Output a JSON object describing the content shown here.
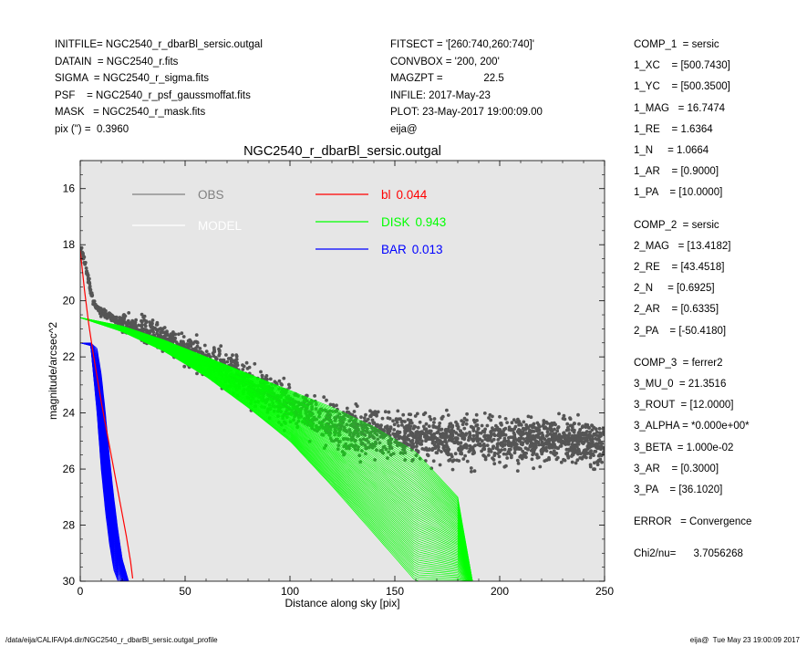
{
  "header": {
    "left": [
      "INITFILE= NGC2540_r_dbarBl_sersic.outgal",
      "DATAIN  = NGC2540_r.fits",
      "SIGMA  = NGC2540_r_sigma.fits",
      "PSF    = NGC2540_r_psf_gaussmoffat.fits",
      "MASK   = NGC2540_r_mask.fits",
      "pix (\") =  0.3960"
    ],
    "middle": [
      "FITSECT = '[260:740,260:740]'",
      "CONVBOX = '200, 200'",
      "MAGZPT =              22.5",
      "INFILE: 2017-May-23",
      "PLOT: 23-May-2017 19:00:09.00",
      "eija@"
    ]
  },
  "params": [
    {
      "text": "COMP_1  = sersic",
      "group": 0
    },
    {
      "text": "1_XC    = [500.7430]",
      "group": 0
    },
    {
      "text": "1_YC    = [500.3500]",
      "group": 0
    },
    {
      "text": "1_MAG   = 16.7474",
      "group": 0
    },
    {
      "text": "1_RE    = 1.6364",
      "group": 0
    },
    {
      "text": "1_N     = 1.0664",
      "group": 0
    },
    {
      "text": "1_AR    = [0.9000]",
      "group": 0
    },
    {
      "text": "1_PA    = [10.0000]",
      "group": 0
    },
    {
      "text": "COMP_2  = sersic",
      "group": 1
    },
    {
      "text": "2_MAG   = [13.4182]",
      "group": 1
    },
    {
      "text": "2_RE    = [43.4518]",
      "group": 1
    },
    {
      "text": "2_N     = [0.6925]",
      "group": 1
    },
    {
      "text": "2_AR    = [0.6335]",
      "group": 1
    },
    {
      "text": "2_PA    = [-50.4180]",
      "group": 1
    },
    {
      "text": "COMP_3  = ferrer2",
      "group": 2
    },
    {
      "text": "3_MU_0  = 21.3516",
      "group": 2
    },
    {
      "text": "3_ROUT  = [12.0000]",
      "group": 2
    },
    {
      "text": "3_ALPHA = *0.000e+00*",
      "group": 2
    },
    {
      "text": "3_BETA  = 1.000e-02",
      "group": 2
    },
    {
      "text": "3_AR    = [0.3000]",
      "group": 2
    },
    {
      "text": "3_PA    = [36.1020]",
      "group": 2
    },
    {
      "text": "ERROR   = Convergence",
      "group": 3
    },
    {
      "text": "Chi2/nu=      3.7056268",
      "group": 4
    }
  ],
  "footer": {
    "left": "/data/eija/CALIFA/p4.dir/NGC2540_r_dbarBl_sersic.outgal_profile",
    "right": "eija@  Tue May 23 19:00:09 2017"
  },
  "colors": {
    "plot_bg": "#e6e6e6",
    "obs": "#555555",
    "model": "#ffffff",
    "bl": "#ff0000",
    "disk": "#00ff00",
    "bar": "#0000ff"
  },
  "chart_data": {
    "type": "scatter",
    "title": "NGC2540_r_dbarBl_sersic.outgal",
    "xlabel": "Distance along sky [pix]",
    "ylabel": "magnitude/arcsec^2",
    "xlim": [
      0,
      250
    ],
    "ylim": [
      30,
      15
    ],
    "y_inverted": true,
    "xticks": [
      0,
      50,
      100,
      150,
      200,
      250
    ],
    "yticks": [
      16,
      18,
      20,
      22,
      24,
      26,
      28,
      30
    ],
    "grid": false,
    "legend_placement": "top",
    "legend": [
      {
        "label": "OBS",
        "value": "",
        "color": "#808080"
      },
      {
        "label": "MODEL",
        "value": "",
        "color": "#ffffff"
      },
      {
        "label": "bl",
        "value": "0.044",
        "color": "#ff0000"
      },
      {
        "label": "DISK",
        "value": "0.943",
        "color": "#00ff00"
      },
      {
        "label": "BAR",
        "value": "0.013",
        "color": "#0000ff"
      }
    ],
    "series": [
      {
        "name": "OBS",
        "style": "points",
        "x": [
          0.5,
          3,
          6,
          10,
          15,
          20,
          30,
          40,
          50,
          60,
          70,
          80,
          90,
          100,
          110,
          120,
          130,
          140,
          150,
          160,
          170,
          180,
          190,
          200,
          210,
          220,
          230,
          240,
          250
        ],
        "y": [
          18.2,
          18.9,
          20.0,
          20.4,
          20.6,
          20.8,
          21.0,
          21.3,
          21.7,
          22.1,
          22.5,
          22.9,
          23.4,
          23.8,
          24.1,
          24.4,
          24.6,
          24.7,
          24.8,
          24.9,
          24.9,
          24.9,
          25.0,
          25.0,
          25.0,
          25.0,
          25.0,
          25.1,
          25.1
        ]
      },
      {
        "name": "MODEL",
        "style": "line",
        "x": [
          0,
          5,
          10,
          20,
          40,
          60,
          80,
          100,
          120,
          140,
          160,
          180
        ],
        "y": [
          18.1,
          20.2,
          20.7,
          20.9,
          21.5,
          22.4,
          23.5,
          24.6,
          25.8,
          27.0,
          28.2,
          29.5
        ]
      },
      {
        "name": "bl",
        "style": "line",
        "x": [
          0,
          2,
          4,
          6,
          8,
          10,
          12,
          14,
          16,
          18,
          20,
          22,
          24,
          25
        ],
        "y": [
          18.2,
          19.6,
          20.8,
          21.8,
          22.7,
          23.6,
          24.4,
          25.2,
          26.0,
          26.8,
          27.6,
          28.4,
          29.3,
          29.9
        ]
      },
      {
        "name": "DISK",
        "style": "band",
        "x": [
          0,
          20,
          40,
          60,
          80,
          100,
          120,
          140,
          160,
          180,
          187
        ],
        "y_upper": [
          20.6,
          20.9,
          21.4,
          22.0,
          22.6,
          23.2,
          23.8,
          24.5,
          25.4,
          27.0,
          30.0
        ],
        "y_lower": [
          20.6,
          21.1,
          21.8,
          22.7,
          23.8,
          25.0,
          26.6,
          28.3,
          30.0,
          30.0,
          30.0
        ]
      },
      {
        "name": "BAR",
        "style": "band",
        "x": [
          0,
          5,
          8,
          10,
          12,
          14,
          16,
          18,
          20,
          23
        ],
        "y_upper": [
          21.5,
          21.5,
          21.7,
          22.6,
          24.0,
          25.6,
          27.0,
          28.2,
          29.2,
          30.0
        ],
        "y_lower": [
          21.5,
          21.6,
          24.0,
          26.0,
          27.5,
          28.7,
          29.6,
          30.0,
          30.0,
          30.0
        ]
      }
    ]
  }
}
